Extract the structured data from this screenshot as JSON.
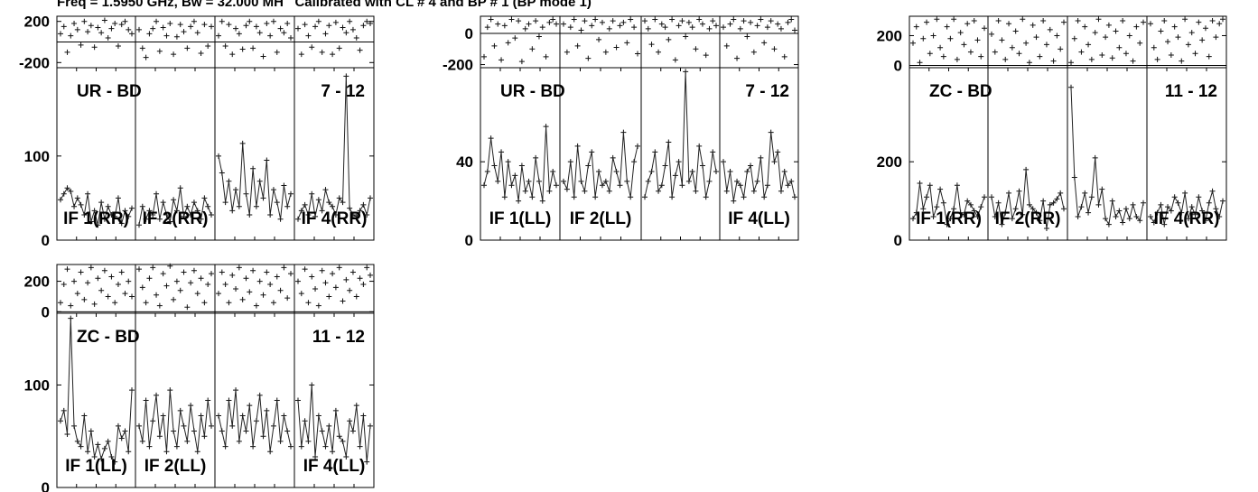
{
  "header": {
    "text": "Freq = 1.5950 GHz, Bw = 32.000 MH   Calibrated with CL # 4 and BP # 1 (BP mode 1)"
  },
  "chart_data": [
    {
      "type": "line",
      "baseline": "UR - BD",
      "baseline_range": "7 - 12",
      "phase_ticks": [
        "200",
        "-200"
      ],
      "phase_range": [
        -250,
        250
      ],
      "amp_ticks": [
        "100",
        "0"
      ],
      "amp_range": [
        0,
        205
      ],
      "if_labels": [
        "IF 1(RR)",
        "IF 2(RR)",
        "",
        "IF 4(RR)"
      ],
      "amp": [
        [
          48,
          55,
          62,
          58,
          40,
          50,
          42,
          30,
          55,
          22,
          35,
          18,
          45,
          25,
          40,
          30,
          28,
          50,
          20,
          35,
          28,
          38
        ],
        [
          18,
          40,
          25,
          35,
          30,
          55,
          25,
          45,
          30,
          22,
          48,
          35,
          62,
          28,
          40,
          30,
          45,
          35,
          25,
          50,
          40,
          30
        ],
        [
          100,
          80,
          45,
          70,
          35,
          60,
          40,
          115,
          55,
          30,
          85,
          40,
          70,
          50,
          95,
          30,
          60,
          45,
          25,
          65,
          40,
          55
        ],
        [
          25,
          35,
          42,
          30,
          55,
          28,
          48,
          35,
          60,
          45,
          40,
          30,
          50,
          45,
          195,
          38,
          30,
          28,
          35,
          42,
          30,
          50
        ]
      ],
      "phase": [
        [
          80,
          150,
          -100,
          60,
          180,
          120,
          -30,
          200,
          100,
          160,
          -50,
          140,
          90,
          210,
          40,
          130,
          180,
          -40,
          170,
          200,
          120,
          80
        ],
        [
          120,
          -60,
          -150,
          80,
          130,
          200,
          -90,
          140,
          60,
          180,
          -120,
          50,
          170,
          100,
          -60,
          150,
          200,
          90,
          -110,
          170,
          -40,
          150
        ],
        [
          60,
          200,
          -40,
          170,
          -120,
          130,
          80,
          -70,
          160,
          200,
          -60,
          150,
          90,
          -140,
          180,
          60,
          200,
          -100,
          130,
          90,
          180,
          40
        ],
        [
          130,
          -120,
          170,
          60,
          -50,
          150,
          200,
          -100,
          80,
          160,
          -120,
          190,
          -60,
          140,
          90,
          200,
          120,
          40,
          -80,
          160,
          200,
          180
        ]
      ]
    },
    {
      "type": "line",
      "baseline": "UR - BD",
      "baseline_range": "7 - 12",
      "phase_ticks": [
        "0",
        "-200"
      ],
      "phase_range": [
        -220,
        110
      ],
      "amp_ticks": [
        "40",
        "0"
      ],
      "amp_range": [
        0,
        88
      ],
      "if_labels": [
        "IF 1(LL)",
        "IF 2(LL)",
        "",
        "IF 4(LL)"
      ],
      "amp": [
        [
          28,
          35,
          52,
          38,
          30,
          45,
          22,
          40,
          28,
          33,
          20,
          38,
          25,
          30,
          22,
          42,
          30,
          20,
          58,
          25,
          35,
          28
        ],
        [
          30,
          26,
          40,
          22,
          48,
          30,
          25,
          38,
          45,
          22,
          35,
          28,
          30,
          25,
          42,
          35,
          28,
          55,
          30,
          22,
          40,
          48
        ],
        [
          22,
          30,
          35,
          45,
          25,
          28,
          38,
          50,
          22,
          33,
          40,
          28,
          86,
          30,
          35,
          25,
          48,
          38,
          22,
          30,
          45,
          35
        ],
        [
          40,
          25,
          35,
          20,
          30,
          28,
          22,
          35,
          38,
          25,
          30,
          42,
          22,
          28,
          55,
          40,
          45,
          25,
          35,
          28,
          30,
          22
        ]
      ],
      "phase": [
        [
          -150,
          40,
          90,
          -80,
          60,
          -170,
          50,
          -60,
          90,
          -30,
          80,
          -180,
          30,
          60,
          -100,
          80,
          -20,
          40,
          -150,
          70,
          90,
          60
        ],
        [
          60,
          -120,
          40,
          90,
          -80,
          20,
          80,
          -160,
          50,
          90,
          -40,
          70,
          -120,
          30,
          80,
          -90,
          50,
          70,
          -60,
          90,
          40,
          -130
        ],
        [
          80,
          30,
          -70,
          90,
          -120,
          60,
          40,
          -40,
          90,
          -170,
          50,
          80,
          -20,
          70,
          40,
          -100,
          90,
          60,
          -140,
          30,
          80,
          50
        ],
        [
          40,
          -80,
          60,
          90,
          -160,
          30,
          80,
          -20,
          70,
          -120,
          50,
          90,
          -60,
          40,
          80,
          -100,
          60,
          30,
          -150,
          70,
          90,
          20
        ]
      ]
    },
    {
      "type": "line",
      "baseline": "ZC - BD",
      "baseline_range": "11 - 12",
      "phase_ticks": [
        "200",
        "0"
      ],
      "phase_range": [
        -15,
        330
      ],
      "amp_ticks": [
        "200",
        "0"
      ],
      "amp_range": [
        0,
        440
      ],
      "if_labels": [
        "IF 1(RR)",
        "IF 2(RR)",
        "",
        "IF 4(RR)"
      ],
      "amp": [
        [
          55,
          70,
          145,
          80,
          110,
          140,
          60,
          85,
          130,
          95,
          40,
          55,
          80,
          140,
          70,
          65,
          100,
          90,
          75,
          60,
          85,
          110
        ],
        [
          110,
          60,
          95,
          40,
          70,
          120,
          55,
          80,
          125,
          65,
          180,
          90,
          80,
          70,
          50,
          100,
          30,
          90,
          95,
          105,
          120,
          80
        ],
        [
          390,
          160,
          60,
          85,
          120,
          70,
          110,
          210,
          90,
          130,
          55,
          40,
          100,
          60,
          75,
          45,
          80,
          55,
          90,
          60,
          50,
          95
        ],
        [
          60,
          45,
          70,
          90,
          40,
          85,
          75,
          110,
          95,
          70,
          120,
          55,
          85,
          65,
          110,
          75,
          50,
          95,
          125,
          80,
          60,
          100
        ]
      ],
      "phase": [
        [
          150,
          260,
          20,
          180,
          290,
          80,
          200,
          310,
          120,
          60,
          260,
          180,
          310,
          40,
          220,
          140,
          280,
          90,
          300,
          170,
          60,
          250
        ],
        [
          210,
          90,
          300,
          170,
          40,
          280,
          120,
          230,
          80,
          310,
          150,
          20,
          270,
          190,
          60,
          300,
          140,
          240,
          30,
          200,
          110,
          290
        ],
        [
          20,
          180,
          300,
          90,
          260,
          140,
          40,
          220,
          310,
          70,
          190,
          270,
          50,
          230,
          120,
          300,
          80,
          200,
          30,
          260,
          150,
          290
        ],
        [
          280,
          120,
          40,
          230,
          300,
          160,
          70,
          260,
          190,
          30,
          310,
          140,
          220,
          80,
          290,
          170,
          250,
          60,
          300,
          190,
          280,
          310
        ]
      ]
    },
    {
      "type": "line",
      "baseline": "ZC - BD",
      "baseline_range": "11 - 12",
      "phase_ticks": [
        "200",
        "0"
      ],
      "phase_range": [
        -10,
        310
      ],
      "amp_ticks": [
        "100",
        "0"
      ],
      "amp_range": [
        0,
        170
      ],
      "if_labels": [
        "IF 1(LL)",
        "IF 2(LL)",
        "",
        "IF 4(LL)"
      ],
      "amp": [
        [
          65,
          75,
          52,
          165,
          60,
          45,
          40,
          70,
          35,
          55,
          30,
          42,
          28,
          38,
          45,
          30,
          25,
          60,
          48,
          55,
          35,
          95
        ],
        [
          60,
          45,
          85,
          40,
          65,
          90,
          50,
          70,
          35,
          95,
          55,
          40,
          75,
          60,
          45,
          80,
          55,
          35,
          70,
          50,
          85,
          60
        ],
        [
          70,
          55,
          40,
          85,
          60,
          95,
          45,
          70,
          55,
          80,
          40,
          65,
          90,
          50,
          75,
          35,
          60,
          85,
          45,
          70,
          55,
          40
        ],
        [
          85,
          40,
          65,
          45,
          100,
          30,
          70,
          55,
          40,
          60,
          35,
          75,
          50,
          45,
          30,
          65,
          55,
          80,
          40,
          70,
          25,
          60
        ]
      ],
      "phase": [
        [
          60,
          180,
          280,
          40,
          200,
          120,
          260,
          80,
          190,
          290,
          50,
          220,
          140,
          270,
          100,
          230,
          60,
          180,
          260,
          120,
          200,
          100
        ],
        [
          280,
          160,
          60,
          220,
          290,
          110,
          40,
          250,
          170,
          300,
          80,
          200,
          140,
          260,
          30,
          190,
          270,
          120,
          220,
          60,
          180,
          250
        ],
        [
          120,
          260,
          180,
          60,
          240,
          150,
          290,
          80,
          220,
          130,
          270,
          40,
          200,
          110,
          260,
          180,
          60,
          230,
          140,
          290,
          90,
          250
        ],
        [
          200,
          120,
          280,
          60,
          230,
          150,
          40,
          270,
          190,
          100,
          250,
          160,
          290,
          70,
          210,
          140,
          260,
          100,
          220,
          180,
          290,
          240
        ]
      ]
    }
  ]
}
